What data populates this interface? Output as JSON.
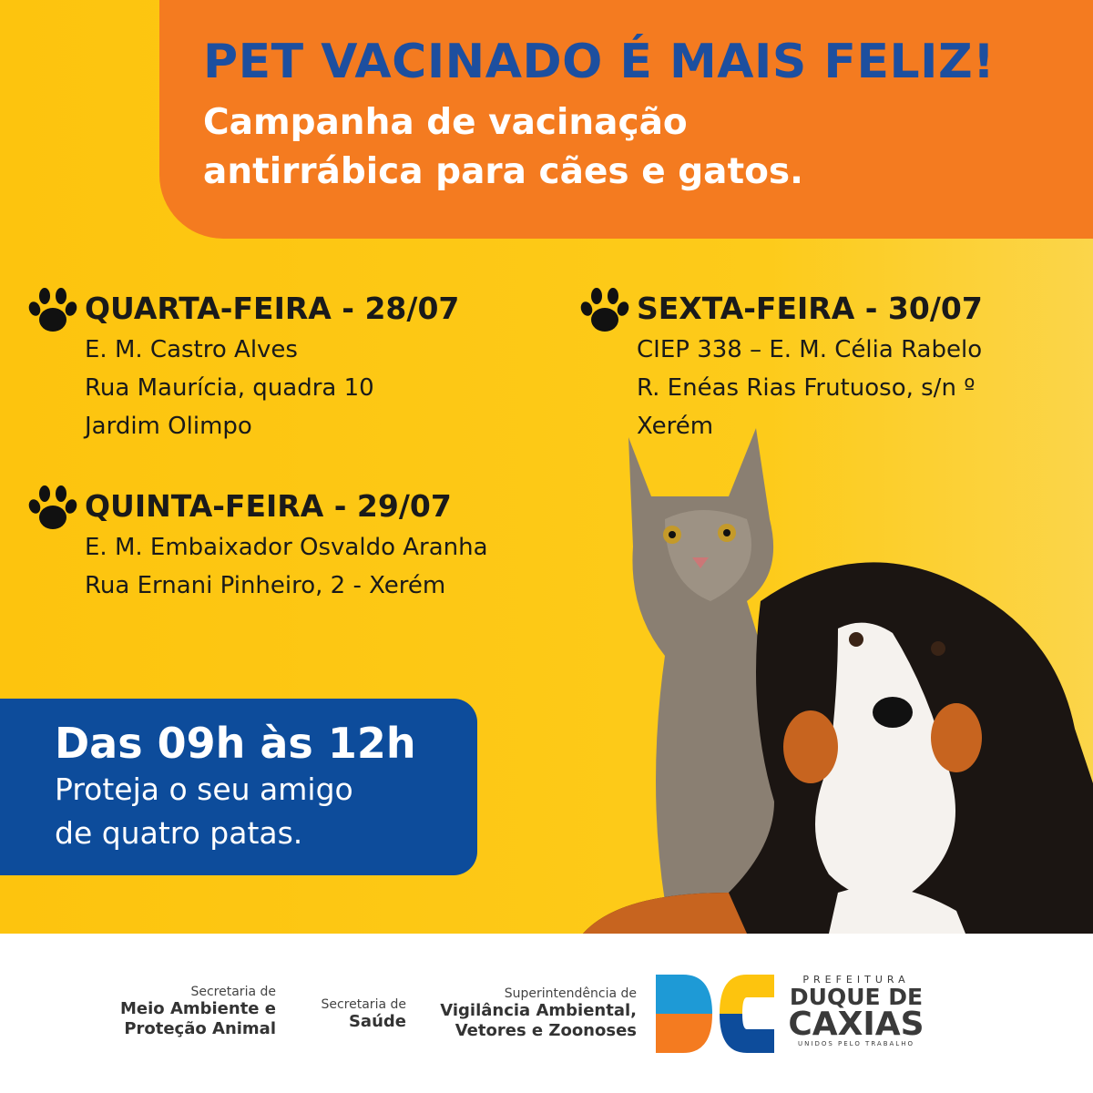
{
  "header": {
    "title": "PET VACINADO É MAIS FELIZ!",
    "subtitle_lines": [
      "Campanha de vacinação",
      "antirrábica para cães e gatos."
    ]
  },
  "colors": {
    "background": "#FDC712",
    "header": "#F47B20",
    "title": "#1D4F9F",
    "hours_box": "#0D4C9B"
  },
  "schedule": [
    {
      "icon": "paw-icon",
      "day": "QUARTA-FEIRA - 28/07",
      "lines": [
        "E. M. Castro Alves",
        "Rua Maurícia, quadra 10",
        "Jardim Olimpo"
      ]
    },
    {
      "icon": "paw-icon",
      "day": "QUINTA-FEIRA - 29/07",
      "lines": [
        "E. M. Embaixador Osvaldo Aranha",
        "Rua Ernani Pinheiro, 2 - Xerém"
      ]
    },
    {
      "icon": "paw-icon",
      "day": "SEXTA-FEIRA - 30/07",
      "lines": [
        "CIEP 338 – E. M. Célia Rabelo",
        "R. Enéas Rias Frutuoso, s/n º",
        "Xerém"
      ]
    }
  ],
  "hours": {
    "title": "Das 09h às 12h",
    "lines": [
      "Proteja o seu amigo",
      "de quatro patas."
    ]
  },
  "footer": {
    "orgs": [
      {
        "small": "Secretaria de",
        "big": [
          "Meio Ambiente e",
          "Proteção Animal"
        ]
      },
      {
        "small": "Secretaria de",
        "big": [
          "Saúde"
        ]
      },
      {
        "small": "Superintendência de",
        "big": [
          "Vigilância Ambiental,",
          "Vetores e Zoonoses"
        ]
      }
    ],
    "logo": {
      "top": "PREFEITURA",
      "name1": "DUQUE DE",
      "name2": "CAXIAS",
      "tagline": "UNIDOS PELO TRABALHO"
    }
  }
}
